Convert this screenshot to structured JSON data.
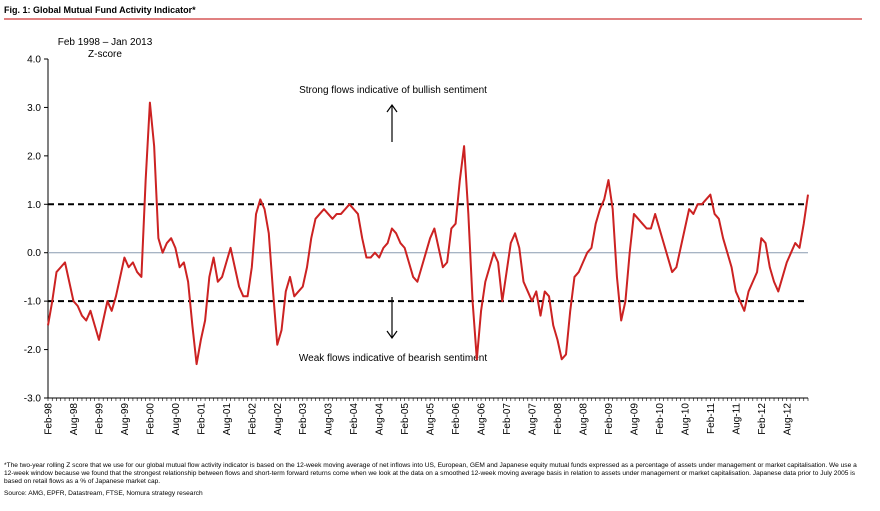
{
  "chart_data": {
    "type": "line",
    "title": "Fig. 1:  Global Mutual Fund Activity Indicator*",
    "subtitle": "Feb 1998 – Jan 2013",
    "y_label": "Z-score",
    "categories": [
      "Feb-98",
      null,
      null,
      null,
      null,
      null,
      "Aug-98",
      null,
      null,
      null,
      null,
      null,
      "Feb-99",
      null,
      null,
      null,
      null,
      null,
      "Aug-99",
      null,
      null,
      null,
      null,
      null,
      "Feb-00",
      null,
      null,
      null,
      null,
      null,
      "Aug-00",
      null,
      null,
      null,
      null,
      null,
      "Feb-01",
      null,
      null,
      null,
      null,
      null,
      "Aug-01",
      null,
      null,
      null,
      null,
      null,
      "Feb-02",
      null,
      null,
      null,
      null,
      null,
      "Aug-02",
      null,
      null,
      null,
      null,
      null,
      "Feb-03",
      null,
      null,
      null,
      null,
      null,
      "Aug-03",
      null,
      null,
      null,
      null,
      null,
      "Feb-04",
      null,
      null,
      null,
      null,
      null,
      "Aug-04",
      null,
      null,
      null,
      null,
      null,
      "Feb-05",
      null,
      null,
      null,
      null,
      null,
      "Aug-05",
      null,
      null,
      null,
      null,
      null,
      "Feb-06",
      null,
      null,
      null,
      null,
      null,
      "Aug-06",
      null,
      null,
      null,
      null,
      null,
      "Feb-07",
      null,
      null,
      null,
      null,
      null,
      "Aug-07",
      null,
      null,
      null,
      null,
      null,
      "Feb-08",
      null,
      null,
      null,
      null,
      null,
      "Aug-08",
      null,
      null,
      null,
      null,
      null,
      "Feb-09",
      null,
      null,
      null,
      null,
      null,
      "Aug-09",
      null,
      null,
      null,
      null,
      null,
      "Feb-10",
      null,
      null,
      null,
      null,
      null,
      "Aug-10",
      null,
      null,
      null,
      null,
      null,
      "Feb-11",
      null,
      null,
      null,
      null,
      null,
      "Aug-11",
      null,
      null,
      null,
      null,
      null,
      "Feb-12",
      null,
      null,
      null,
      null,
      null,
      "Aug-12",
      null,
      null,
      null,
      null,
      null
    ],
    "series": [
      {
        "color": "#cc2222",
        "values": [
          -1.5,
          -1.0,
          -0.4,
          -0.3,
          -0.2,
          -0.6,
          -1.0,
          -1.1,
          -1.3,
          -1.4,
          -1.2,
          -1.5,
          -1.8,
          -1.4,
          -1.0,
          -1.2,
          -0.9,
          -0.5,
          -0.1,
          -0.3,
          -0.2,
          -0.4,
          -0.5,
          1.5,
          3.1,
          2.2,
          0.3,
          0.0,
          0.2,
          0.3,
          0.1,
          -0.3,
          -0.2,
          -0.6,
          -1.5,
          -2.3,
          -1.8,
          -1.4,
          -0.5,
          -0.1,
          -0.6,
          -0.5,
          -0.2,
          0.1,
          -0.3,
          -0.7,
          -0.9,
          -0.9,
          -0.3,
          0.8,
          1.1,
          0.9,
          0.4,
          -0.8,
          -1.9,
          -1.6,
          -0.8,
          -0.5,
          -0.9,
          -0.8,
          -0.7,
          -0.3,
          0.3,
          0.7,
          0.8,
          0.9,
          0.8,
          0.7,
          0.8,
          0.8,
          0.9,
          1.0,
          0.9,
          0.8,
          0.3,
          -0.1,
          -0.1,
          0.0,
          -0.1,
          0.1,
          0.2,
          0.5,
          0.4,
          0.2,
          0.1,
          -0.2,
          -0.5,
          -0.6,
          -0.3,
          0.0,
          0.3,
          0.5,
          0.1,
          -0.3,
          -0.2,
          0.5,
          0.6,
          1.5,
          2.2,
          0.8,
          -1.0,
          -2.2,
          -1.2,
          -0.6,
          -0.3,
          0.0,
          -0.2,
          -1.0,
          -0.4,
          0.2,
          0.4,
          0.1,
          -0.6,
          -0.8,
          -1.0,
          -0.8,
          -1.3,
          -0.8,
          -0.9,
          -1.5,
          -1.8,
          -2.2,
          -2.1,
          -1.2,
          -0.5,
          -0.4,
          -0.2,
          0.0,
          0.1,
          0.6,
          0.9,
          1.1,
          1.5,
          0.9,
          -0.5,
          -1.4,
          -1.0,
          0.0,
          0.8,
          0.7,
          0.6,
          0.5,
          0.5,
          0.8,
          0.5,
          0.2,
          -0.1,
          -0.4,
          -0.3,
          0.1,
          0.5,
          0.9,
          0.8,
          1.0,
          1.0,
          1.1,
          1.2,
          0.8,
          0.7,
          0.3,
          0.0,
          -0.3,
          -0.8,
          -1.0,
          -1.2,
          -0.8,
          -0.6,
          -0.4,
          0.3,
          0.2,
          -0.3,
          -0.6,
          -0.8,
          -0.5,
          -0.2,
          0.0,
          0.2,
          0.1,
          0.6,
          1.2
        ]
      }
    ],
    "ylim": [
      -3,
      4
    ],
    "yticks": [
      {
        "value": 4,
        "label": "4.0"
      },
      {
        "value": 3,
        "label": "3.0"
      },
      {
        "value": 2,
        "label": "2.0"
      },
      {
        "value": 1,
        "label": "1.0"
      },
      {
        "value": 0,
        "label": "0.0"
      },
      {
        "value": -1,
        "label": "-1.0"
      },
      {
        "value": -2,
        "label": "-2.0"
      },
      {
        "value": -3,
        "label": "-3.0"
      }
    ],
    "grid": false,
    "reference_lines": [
      {
        "value": 1,
        "style": "dashed",
        "color": "#000000"
      },
      {
        "value": -1,
        "style": "dashed",
        "color": "#000000"
      },
      {
        "value": 0,
        "style": "solid",
        "color": "#8a9bb0"
      }
    ],
    "annotations": [
      "Strong flows indicative of bullish sentiment",
      "Weak flows indicative of bearish sentiment"
    ],
    "footnote": "*The two-year rolling Z score that we use for our global mutual flow activity indicator is based on the 12-week moving average of net inflows into US, European, GEM and Japanese equity mutual funds expressed as a percentage of assets under management or market capitalisation. We use a 12-week window because we found that the strongest relationship between flows and short-term forward returns come when we look at the data on a smoothed 12-week moving average basis in relation to assets under management or market capitalisation. Japanese data prior to July 2005 is based on retail flows as a % of Japanese market cap.",
    "source": "Source: AMG, EPFR, Datastream, FTSE, Nomura strategy research"
  }
}
